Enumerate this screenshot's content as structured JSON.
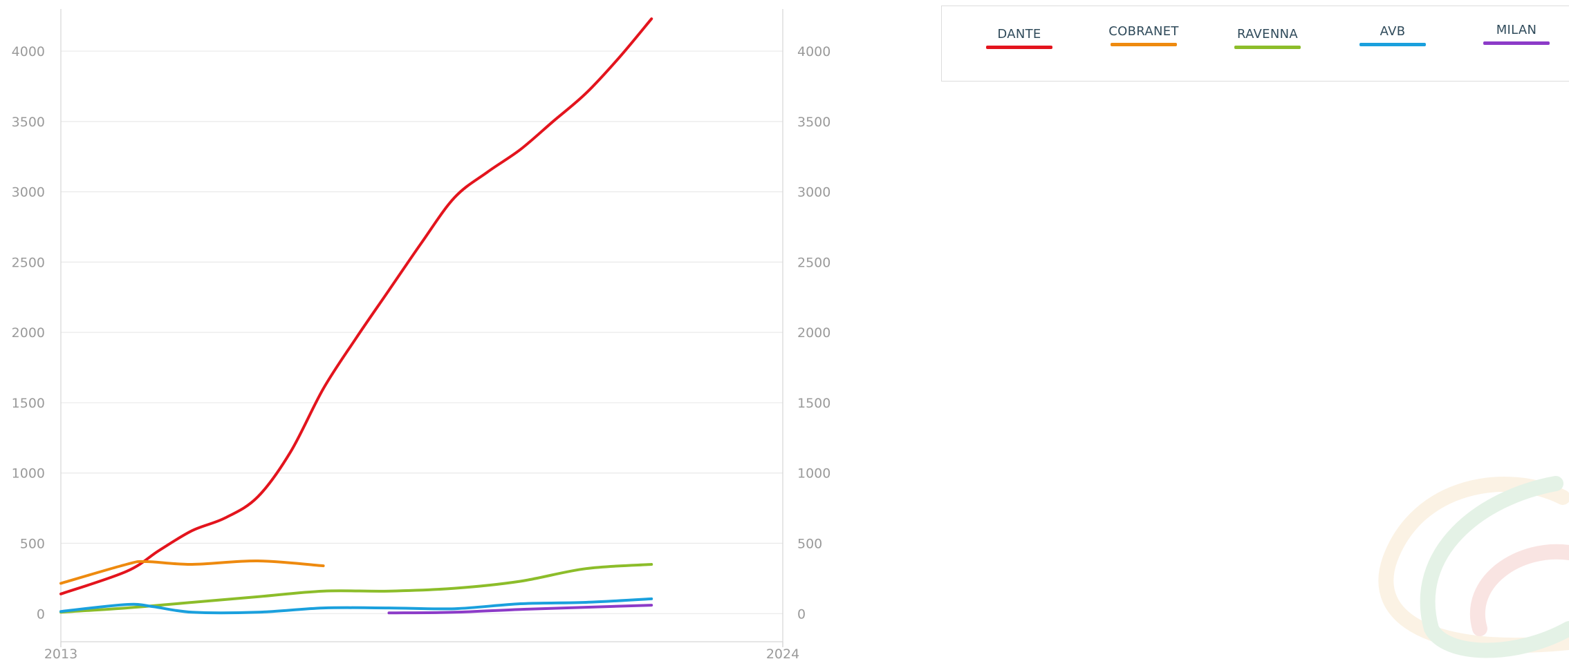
{
  "chart_data": {
    "type": "line",
    "title": "",
    "xlabel": "",
    "ylabel": "",
    "x_ticks": [
      "2013",
      "2024"
    ],
    "xlim": [
      2013,
      2024
    ],
    "ylim": [
      -200,
      4300
    ],
    "y_ticks": [
      0,
      500,
      1000,
      1500,
      2000,
      2500,
      3000,
      3500,
      4000
    ],
    "y_tick_labels": [
      "0",
      "500",
      "1000",
      "1500",
      "2000",
      "2500",
      "3000",
      "3500",
      "4000"
    ],
    "y_axis": "both-sides",
    "grid": "horizontal",
    "legend_position": "top-right",
    "series": [
      {
        "name": "DANTE",
        "color": "#e3141d",
        "points": [
          [
            2013,
            140
          ],
          [
            2014,
            300
          ],
          [
            2014.5,
            450
          ],
          [
            2015,
            590
          ],
          [
            2015.5,
            680
          ],
          [
            2016,
            830
          ],
          [
            2016.5,
            1150
          ],
          [
            2017,
            1600
          ],
          [
            2017.5,
            1960
          ],
          [
            2018,
            2300
          ],
          [
            2018.5,
            2640
          ],
          [
            2019,
            2960
          ],
          [
            2019.5,
            3140
          ],
          [
            2020,
            3300
          ],
          [
            2020.5,
            3500
          ],
          [
            2021,
            3700
          ],
          [
            2021.5,
            3950
          ],
          [
            2022,
            4230
          ]
        ]
      },
      {
        "name": "COBRANET",
        "color": "#ee8a0f",
        "points": [
          [
            2013,
            215
          ],
          [
            2014,
            350
          ],
          [
            2014.3,
            370
          ],
          [
            2015,
            350
          ],
          [
            2016,
            375
          ],
          [
            2017,
            340
          ]
        ]
      },
      {
        "name": "RAVENNA",
        "color": "#8cbd2a",
        "points": [
          [
            2013,
            10
          ],
          [
            2014,
            40
          ],
          [
            2015,
            80
          ],
          [
            2016,
            120
          ],
          [
            2017,
            160
          ],
          [
            2018,
            160
          ],
          [
            2019,
            180
          ],
          [
            2020,
            230
          ],
          [
            2021,
            320
          ],
          [
            2022,
            350
          ]
        ]
      },
      {
        "name": "AVB",
        "color": "#1aa0dd",
        "points": [
          [
            2013,
            15
          ],
          [
            2014,
            65
          ],
          [
            2014.4,
            50
          ],
          [
            2015,
            10
          ],
          [
            2016,
            10
          ],
          [
            2017,
            40
          ],
          [
            2018,
            40
          ],
          [
            2019,
            35
          ],
          [
            2020,
            70
          ],
          [
            2021,
            80
          ],
          [
            2022,
            105
          ]
        ]
      },
      {
        "name": "MILAN",
        "color": "#8c3bc8",
        "points": [
          [
            2018,
            5
          ],
          [
            2019,
            10
          ],
          [
            2020,
            30
          ],
          [
            2021,
            45
          ],
          [
            2022,
            60
          ]
        ]
      }
    ]
  }
}
